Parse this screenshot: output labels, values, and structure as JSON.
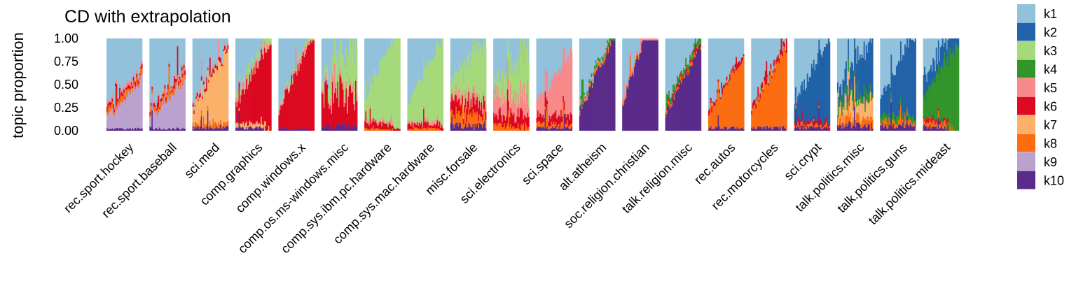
{
  "chart_data": {
    "type": "stacked-bar",
    "title": "CD with extrapolation",
    "ylabel": "topic proportion",
    "xlabel": "",
    "ylim": [
      0,
      1
    ],
    "yticks": [
      0,
      0.25,
      0.5,
      0.75,
      1
    ],
    "ytick_labels": [
      "0.00",
      "0.25",
      "0.50",
      "0.75",
      "1.00"
    ],
    "grid": false,
    "legend_position": "right",
    "topics": [
      "k1",
      "k2",
      "k3",
      "k4",
      "k5",
      "k6",
      "k7",
      "k8",
      "k9",
      "k10"
    ],
    "colors": {
      "k1": "#92c1dc",
      "k2": "#2162a8",
      "k3": "#a6d97a",
      "k4": "#31952b",
      "k5": "#f8898a",
      "k6": "#dc0920",
      "k7": "#fbb16a",
      "k8": "#fb6d10",
      "k9": "#baa1ce",
      "k10": "#5a2b8a"
    },
    "facets": [
      {
        "label": "rec.sport.hockey",
        "mean": {
          "k1": 0.55,
          "k9": 0.32,
          "k8": 0.05,
          "k6": 0.03,
          "k10": 0.02,
          "k5": 0.03
        }
      },
      {
        "label": "rec.sport.baseball",
        "mean": {
          "k1": 0.55,
          "k9": 0.33,
          "k8": 0.05,
          "k6": 0.03,
          "k10": 0.02,
          "k5": 0.02
        }
      },
      {
        "label": "sci.med",
        "mean": {
          "k1": 0.4,
          "k7": 0.48,
          "k8": 0.04,
          "k6": 0.03,
          "k10": 0.03,
          "k5": 0.02
        }
      },
      {
        "label": "comp.graphics",
        "mean": {
          "k1": 0.28,
          "k6": 0.55,
          "k3": 0.05,
          "k5": 0.05,
          "k7": 0.04,
          "k10": 0.03
        }
      },
      {
        "label": "comp.windows.x",
        "mean": {
          "k1": 0.3,
          "k6": 0.62,
          "k3": 0.03,
          "k5": 0.03,
          "k10": 0.02
        }
      },
      {
        "label": "comp.os.ms-windows.misc",
        "mean": {
          "k1": 0.3,
          "k3": 0.3,
          "k6": 0.3,
          "k5": 0.05,
          "k10": 0.05
        }
      },
      {
        "label": "comp.sys.ibm.pc.hardware",
        "mean": {
          "k1": 0.25,
          "k3": 0.65,
          "k6": 0.05,
          "k5": 0.03,
          "k8": 0.02
        }
      },
      {
        "label": "comp.sys.mac.hardware",
        "mean": {
          "k1": 0.35,
          "k3": 0.55,
          "k6": 0.05,
          "k5": 0.03,
          "k8": 0.02
        }
      },
      {
        "label": "misc.forsale",
        "mean": {
          "k1": 0.3,
          "k3": 0.38,
          "k6": 0.1,
          "k8": 0.1,
          "k5": 0.07,
          "k10": 0.05
        }
      },
      {
        "label": "sci.electronics",
        "mean": {
          "k1": 0.35,
          "k3": 0.3,
          "k5": 0.2,
          "k6": 0.1,
          "k8": 0.05
        }
      },
      {
        "label": "sci.space",
        "mean": {
          "k1": 0.45,
          "k5": 0.4,
          "k6": 0.08,
          "k8": 0.04,
          "k10": 0.03
        }
      },
      {
        "label": "alt.atheism",
        "mean": {
          "k1": 0.3,
          "k10": 0.62,
          "k4": 0.03,
          "k8": 0.03,
          "k5": 0.02
        }
      },
      {
        "label": "soc.religion.christian",
        "mean": {
          "k1": 0.1,
          "k10": 0.85,
          "k5": 0.03,
          "k8": 0.02
        }
      },
      {
        "label": "talk.religion.misc",
        "mean": {
          "k1": 0.35,
          "k10": 0.55,
          "k4": 0.05,
          "k8": 0.03,
          "k6": 0.02
        }
      },
      {
        "label": "rec.autos",
        "mean": {
          "k1": 0.45,
          "k8": 0.48,
          "k6": 0.04,
          "k10": 0.03
        }
      },
      {
        "label": "rec.motorcycles",
        "mean": {
          "k1": 0.4,
          "k8": 0.53,
          "k6": 0.04,
          "k10": 0.03
        }
      },
      {
        "label": "sci.crypt",
        "mean": {
          "k1": 0.35,
          "k2": 0.55,
          "k6": 0.04,
          "k10": 0.03,
          "k8": 0.03
        }
      },
      {
        "label": "talk.politics.misc",
        "mean": {
          "k1": 0.3,
          "k2": 0.35,
          "k7": 0.15,
          "k4": 0.08,
          "k8": 0.07,
          "k10": 0.05
        }
      },
      {
        "label": "talk.politics.guns",
        "mean": {
          "k1": 0.3,
          "k2": 0.55,
          "k8": 0.05,
          "k4": 0.05,
          "k10": 0.05
        }
      },
      {
        "label": "talk.politics.mideast",
        "mean": {
          "k1": 0.12,
          "k4": 0.58,
          "k2": 0.18,
          "k8": 0.05,
          "k10": 0.04,
          "k6": 0.03
        }
      }
    ]
  }
}
